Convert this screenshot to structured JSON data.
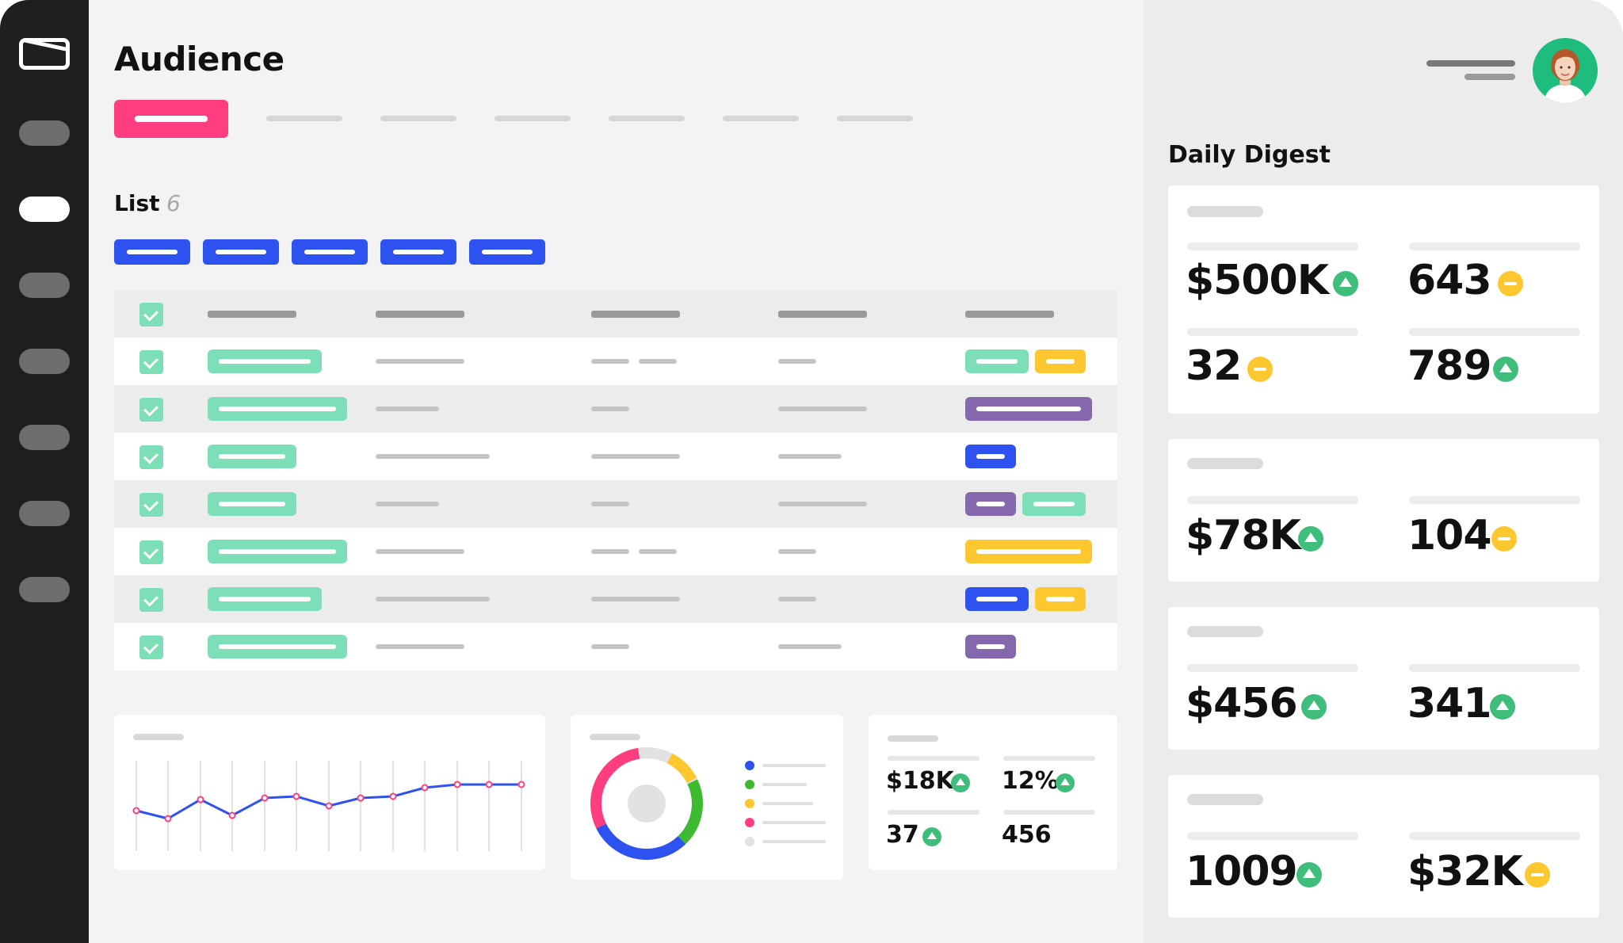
{
  "header": {
    "title": "Audience"
  },
  "list": {
    "title": "List",
    "count": "6"
  },
  "digest": {
    "title": "Daily Digest",
    "cards": [
      {
        "stats": [
          {
            "value": "$500K",
            "trend": "up"
          },
          {
            "value": "643",
            "trend": "flat"
          },
          {
            "value": "32",
            "trend": "flat"
          },
          {
            "value": "789",
            "trend": "up"
          }
        ]
      },
      {
        "stats": [
          {
            "value": "$78K",
            "trend": "up"
          },
          {
            "value": "104",
            "trend": "flat"
          }
        ]
      },
      {
        "stats": [
          {
            "value": "$456",
            "trend": "up"
          },
          {
            "value": "341",
            "trend": "up"
          }
        ]
      },
      {
        "stats": [
          {
            "value": "1009",
            "trend": "up"
          },
          {
            "value": "$32K",
            "trend": "flat"
          }
        ]
      }
    ]
  },
  "mini_stats": [
    {
      "value": "$18K",
      "trend": "up"
    },
    {
      "value": "12%",
      "trend": "up"
    },
    {
      "value": "37",
      "trend": "up"
    },
    {
      "value": "456",
      "trend": "none"
    }
  ],
  "colors": {
    "accent_pink": "#ff3d7f",
    "chip_blue": "#2e52f0",
    "mint": "#7ddfb8",
    "yellow": "#fdc82f",
    "purple": "#8567ad",
    "trend_up": "#3fbd7b"
  },
  "icons": {
    "logo": "envelope-logo-icon",
    "trend_up": "trend-up-icon",
    "trend_flat": "trend-flat-icon",
    "checkbox": "checkbox-checked-icon"
  }
}
